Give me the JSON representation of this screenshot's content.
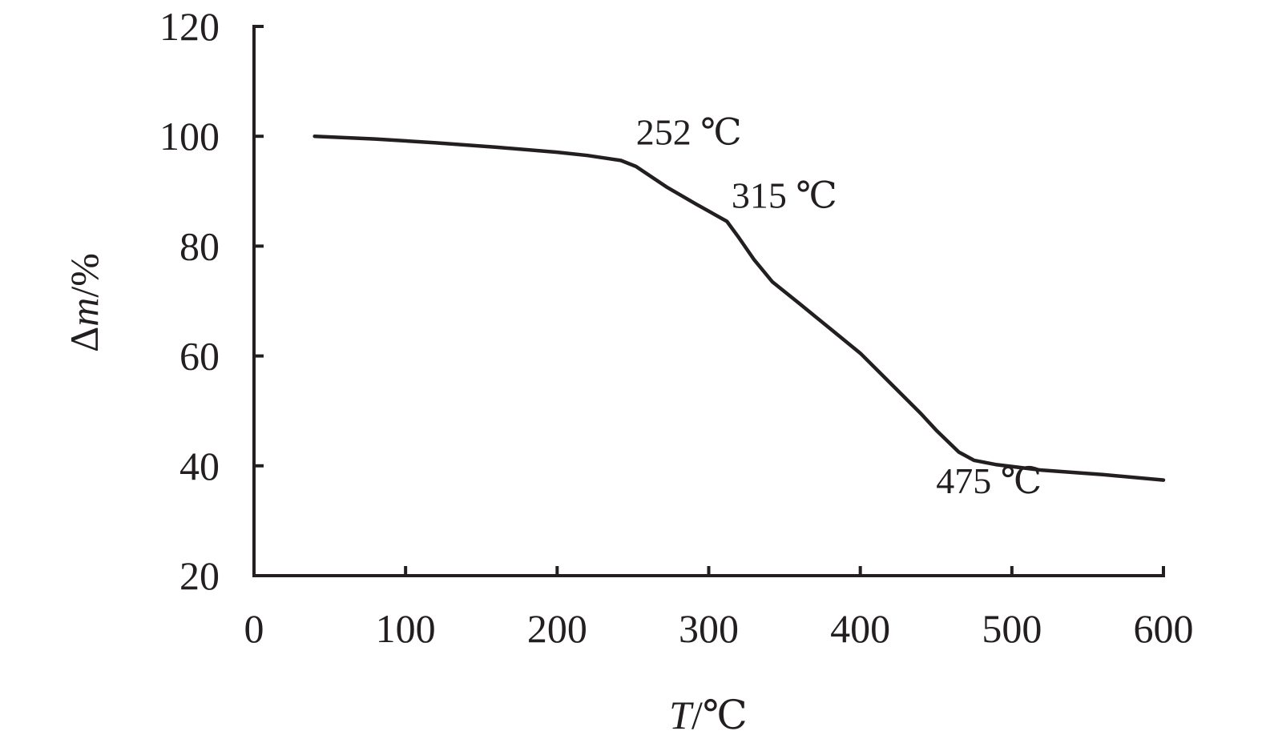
{
  "chart_data": {
    "type": "line",
    "xlabel": {
      "italic": "T",
      "rest": "/℃"
    },
    "ylabel": {
      "prefix": "Δ",
      "italic": "m",
      "rest": "/%"
    },
    "xlim": [
      0,
      600
    ],
    "ylim": [
      20,
      120
    ],
    "x_ticks": [
      0,
      100,
      200,
      300,
      400,
      500,
      600
    ],
    "y_ticks": [
      20,
      40,
      60,
      80,
      100,
      120
    ],
    "grid": false,
    "line_color": "#231f20",
    "series": [
      {
        "x": [
          40,
          80,
          120,
          160,
          200,
          220,
          242,
          252,
          272,
          292,
          312,
          320,
          330,
          342,
          360,
          380,
          400,
          420,
          440,
          450,
          465,
          475,
          490,
          520,
          560,
          600
        ],
        "y": [
          100,
          99.5,
          98.8,
          98,
          97.1,
          96.5,
          95.6,
          94.5,
          90.8,
          87.6,
          84.5,
          81.5,
          77.5,
          73.5,
          69.5,
          65,
          60.5,
          55,
          49.5,
          46.5,
          42.5,
          41,
          40.2,
          39.2,
          38.4,
          37.4
        ]
      }
    ],
    "annotations": [
      {
        "text": "252 ℃",
        "x": 252,
        "y": 98.5
      },
      {
        "text": "315 ℃",
        "x": 315,
        "y": 87
      },
      {
        "text": "475 ℃",
        "x": 450,
        "y": 35
      }
    ]
  }
}
